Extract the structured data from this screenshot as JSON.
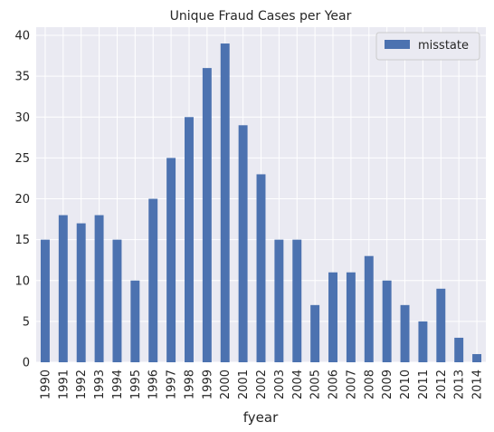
{
  "chart_data": {
    "type": "bar",
    "title": "Unique Fraud Cases per Year",
    "xlabel": "fyear",
    "ylabel": "",
    "ylim": [
      0,
      41
    ],
    "yticks": [
      0,
      5,
      10,
      15,
      20,
      25,
      30,
      35,
      40
    ],
    "categories": [
      "1990",
      "1991",
      "1992",
      "1993",
      "1994",
      "1995",
      "1996",
      "1997",
      "1998",
      "1999",
      "2000",
      "2001",
      "2002",
      "2003",
      "2004",
      "2005",
      "2006",
      "2007",
      "2008",
      "2009",
      "2010",
      "2011",
      "2012",
      "2013",
      "2014"
    ],
    "series": [
      {
        "name": "misstate",
        "color": "#4c72b0",
        "values": [
          15,
          18,
          17,
          18,
          15,
          10,
          20,
          25,
          30,
          36,
          39,
          29,
          23,
          15,
          15,
          7,
          11,
          11,
          13,
          10,
          7,
          5,
          9,
          3,
          1
        ]
      }
    ],
    "grid": true,
    "legend_position": "top-right",
    "background_color": "#eaeaf2",
    "grid_color": "#ffffff"
  }
}
